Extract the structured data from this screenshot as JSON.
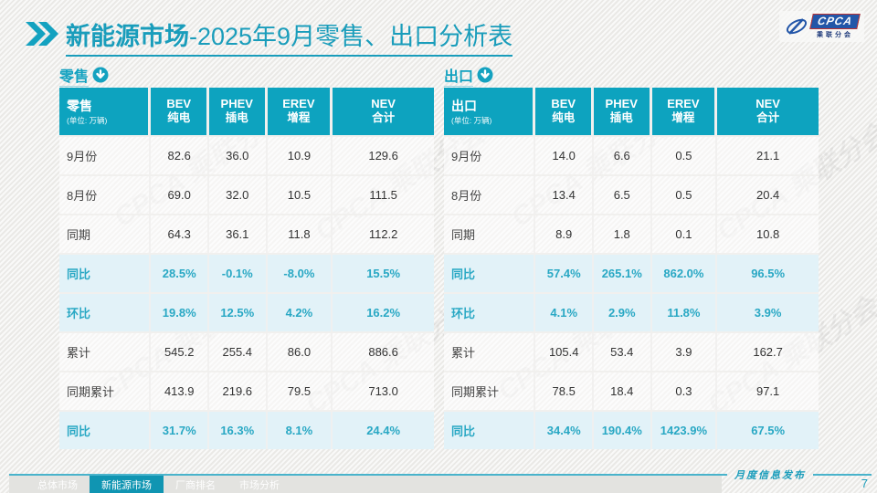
{
  "title": {
    "bold": "新能源市场",
    "rest": "-2025年9月零售、出口分析表"
  },
  "logo": {
    "text": "CPCA",
    "subtext": "乘联分会"
  },
  "watermark": "CPCA 乘联分会",
  "tables": [
    {
      "section_label": "零售",
      "header": {
        "title": "零售",
        "unit": "(单位: 万辆)",
        "columns": [
          {
            "en": "BEV",
            "zh": "纯电"
          },
          {
            "en": "PHEV",
            "zh": "插电"
          },
          {
            "en": "EREV",
            "zh": "增程"
          },
          {
            "en": "NEV",
            "zh": "合计"
          }
        ]
      },
      "rows": [
        {
          "label": "9月份",
          "values": [
            "82.6",
            "36.0",
            "10.9",
            "129.6"
          ],
          "highlight": false
        },
        {
          "label": "8月份",
          "values": [
            "69.0",
            "32.0",
            "10.5",
            "111.5"
          ],
          "highlight": false
        },
        {
          "label": "同期",
          "values": [
            "64.3",
            "36.1",
            "11.8",
            "112.2"
          ],
          "highlight": false
        },
        {
          "label": "同比",
          "values": [
            "28.5%",
            "-0.1%",
            "-8.0%",
            "15.5%"
          ],
          "highlight": true
        },
        {
          "label": "环比",
          "values": [
            "19.8%",
            "12.5%",
            "4.2%",
            "16.2%"
          ],
          "highlight": true
        },
        {
          "label": "累计",
          "values": [
            "545.2",
            "255.4",
            "86.0",
            "886.6"
          ],
          "highlight": false
        },
        {
          "label": "同期累计",
          "values": [
            "413.9",
            "219.6",
            "79.5",
            "713.0"
          ],
          "highlight": false
        },
        {
          "label": "同比",
          "values": [
            "31.7%",
            "16.3%",
            "8.1%",
            "24.4%"
          ],
          "highlight": true
        }
      ]
    },
    {
      "section_label": "出口",
      "header": {
        "title": "出口",
        "unit": "(单位: 万辆)",
        "columns": [
          {
            "en": "BEV",
            "zh": "纯电"
          },
          {
            "en": "PHEV",
            "zh": "插电"
          },
          {
            "en": "EREV",
            "zh": "增程"
          },
          {
            "en": "NEV",
            "zh": "合计"
          }
        ]
      },
      "rows": [
        {
          "label": "9月份",
          "values": [
            "14.0",
            "6.6",
            "0.5",
            "21.1"
          ],
          "highlight": false
        },
        {
          "label": "8月份",
          "values": [
            "13.4",
            "6.5",
            "0.5",
            "20.4"
          ],
          "highlight": false
        },
        {
          "label": "同期",
          "values": [
            "8.9",
            "1.8",
            "0.1",
            "10.8"
          ],
          "highlight": false
        },
        {
          "label": "同比",
          "values": [
            "57.4%",
            "265.1%",
            "862.0%",
            "96.5%"
          ],
          "highlight": true
        },
        {
          "label": "环比",
          "values": [
            "4.1%",
            "2.9%",
            "11.8%",
            "3.9%"
          ],
          "highlight": true
        },
        {
          "label": "累计",
          "values": [
            "105.4",
            "53.4",
            "3.9",
            "162.7"
          ],
          "highlight": false
        },
        {
          "label": "同期累计",
          "values": [
            "78.5",
            "18.4",
            "0.3",
            "97.1"
          ],
          "highlight": false
        },
        {
          "label": "同比",
          "values": [
            "34.4%",
            "190.4%",
            "1423.9%",
            "67.5%"
          ],
          "highlight": true
        }
      ]
    }
  ],
  "footer": {
    "caption": "月度信息发布",
    "page": "7",
    "tabs": [
      {
        "label": "总体市场",
        "active": false
      },
      {
        "label": "新能源市场",
        "active": true
      },
      {
        "label": "厂商排名",
        "active": false
      },
      {
        "label": "市场分析",
        "active": false
      }
    ]
  }
}
